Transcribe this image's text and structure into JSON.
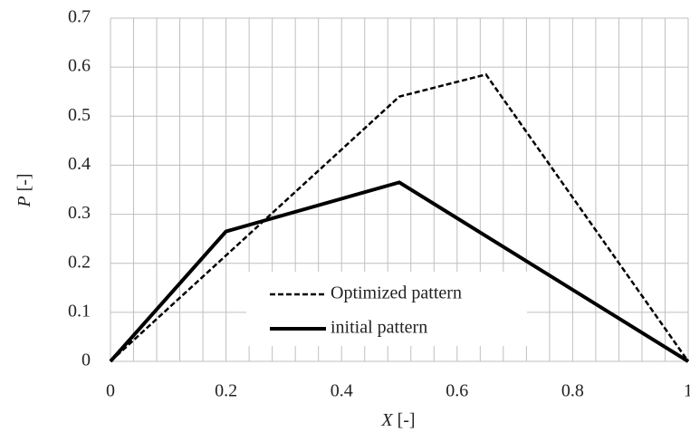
{
  "chart_data": {
    "type": "line",
    "xlabel": {
      "symbol": "X",
      "unit": "[-]"
    },
    "ylabel": {
      "symbol": "P",
      "unit": "[-]"
    },
    "xlim": [
      0,
      1
    ],
    "xticks": [
      0,
      0.2,
      0.4,
      0.6,
      0.8,
      1
    ],
    "xminorticks": [
      0.04,
      0.08,
      0.12,
      0.16,
      0.24,
      0.28,
      0.32,
      0.36,
      0.44,
      0.48,
      0.52,
      0.56,
      0.64,
      0.68,
      0.72,
      0.76,
      0.84,
      0.88,
      0.92,
      0.96
    ],
    "ylim": [
      0,
      0.7
    ],
    "yticks": [
      0,
      0.1,
      0.2,
      0.3,
      0.4,
      0.5,
      0.6,
      0.7
    ],
    "grid": true,
    "series": [
      {
        "name": "Optimized pattern",
        "color": "#000000",
        "dash": true,
        "x": [
          0,
          0.5,
          0.65,
          1
        ],
        "values": [
          0,
          0.54,
          0.585,
          0
        ]
      },
      {
        "name": "initial pattern",
        "color": "#000000",
        "dash": false,
        "x": [
          0,
          0.2,
          0.5,
          1
        ],
        "values": [
          0,
          0.265,
          0.365,
          0
        ]
      }
    ]
  }
}
